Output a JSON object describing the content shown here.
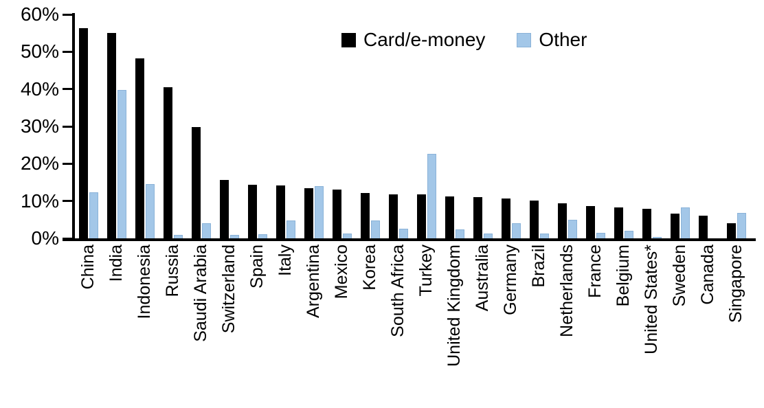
{
  "chart_data": {
    "type": "bar",
    "title": "",
    "xlabel": "",
    "ylabel": "",
    "ylim": [
      0,
      60
    ],
    "ytick_labels": [
      "0%",
      "10%",
      "20%",
      "30%",
      "40%",
      "50%",
      "60%"
    ],
    "grid": false,
    "legend_position": "top-center",
    "categories": [
      "China",
      "India",
      "Indonesia",
      "Russia",
      "Saudi Arabia",
      "Switzerland",
      "Spain",
      "Italy",
      "Argentina",
      "Mexico",
      "Korea",
      "South Africa",
      "Turkey",
      "United Kingdom",
      "Australia",
      "Germany",
      "Brazil",
      "Netherlands",
      "France",
      "Belgium",
      "United States*",
      "Sweden",
      "Canada",
      "Singapore"
    ],
    "series": [
      {
        "name": "Card/e-money",
        "color": "#000000",
        "values": [
          56.3,
          55.0,
          48.3,
          40.5,
          29.9,
          15.7,
          14.3,
          14.2,
          13.5,
          13.0,
          12.2,
          11.8,
          11.7,
          11.2,
          11.0,
          10.7,
          10.1,
          9.4,
          8.6,
          8.2,
          7.9,
          6.7,
          6.1,
          4.0
        ]
      },
      {
        "name": "Other",
        "color": "#a3c7e8",
        "border_color": "#8ab2d8",
        "values": [
          12.3,
          39.7,
          14.6,
          1.0,
          4.0,
          0.9,
          1.1,
          4.7,
          13.9,
          1.3,
          4.7,
          2.5,
          22.6,
          2.4,
          1.2,
          4.1,
          1.3,
          4.9,
          1.5,
          2.0,
          0.4,
          8.2,
          0.0,
          6.8
        ]
      }
    ]
  }
}
